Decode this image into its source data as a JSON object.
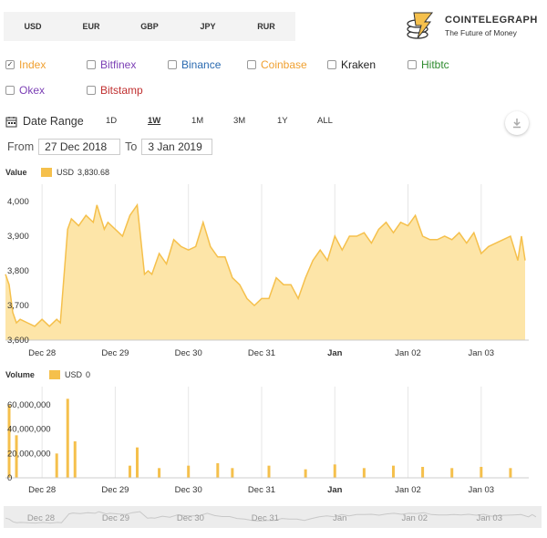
{
  "currencies": [
    {
      "label": "USD",
      "active": true
    },
    {
      "label": "EUR",
      "active": false
    },
    {
      "label": "GBP",
      "active": false
    },
    {
      "label": "JPY",
      "active": false
    },
    {
      "label": "RUR",
      "active": false
    }
  ],
  "brand": {
    "name": "COINTELEGRAPH",
    "tagline": "The Future of Money"
  },
  "exchanges": [
    {
      "label": "Index",
      "checked": true,
      "color": "#f0a030"
    },
    {
      "label": "Bitfinex",
      "checked": false,
      "color": "#7b3fb5"
    },
    {
      "label": "Binance",
      "checked": false,
      "color": "#2a6ab0"
    },
    {
      "label": "Coinbase",
      "checked": false,
      "color": "#f0a030"
    },
    {
      "label": "Kraken",
      "checked": false,
      "color": "#222222"
    },
    {
      "label": "Hitbtc",
      "checked": false,
      "color": "#2e8b2e"
    },
    {
      "label": "Okex",
      "checked": false,
      "color": "#7b3fb5"
    },
    {
      "label": "Bitstamp",
      "checked": false,
      "color": "#c03030"
    }
  ],
  "range": {
    "label": "Date Range",
    "options": [
      {
        "label": "1D",
        "active": false
      },
      {
        "label": "1W",
        "active": true
      },
      {
        "label": "1M",
        "active": false
      },
      {
        "label": "3M",
        "active": false
      },
      {
        "label": "1Y",
        "active": false
      },
      {
        "label": "ALL",
        "active": false
      }
    ],
    "from_label": "From",
    "from_value": "27 Dec 2018",
    "to_label": "To",
    "to_value": "3 Jan 2019"
  },
  "colors": {
    "fill": "#fde5a8",
    "line": "#f5c04c",
    "bar": "#f5c04c"
  },
  "chart_data": [
    {
      "type": "area",
      "title": "Value",
      "legend": {
        "name": "USD",
        "value": "3,830.68",
        "placement": "top-left"
      },
      "x_ticks": [
        "Dec 28",
        "Dec 29",
        "Dec 30",
        "Dec 31",
        "Jan",
        "Jan 02",
        "Jan 03"
      ],
      "x_range": [
        0,
        7.15
      ],
      "y_ticks": [
        "3,600",
        "3,700",
        "3,800",
        "3,900",
        "4,000"
      ],
      "ylim": [
        3600,
        4050
      ],
      "grid": "vertical",
      "x": [
        0,
        0.05,
        0.1,
        0.15,
        0.2,
        0.3,
        0.4,
        0.5,
        0.6,
        0.7,
        0.75,
        0.85,
        0.9,
        1.0,
        1.1,
        1.2,
        1.25,
        1.35,
        1.4,
        1.5,
        1.6,
        1.7,
        1.8,
        1.9,
        1.95,
        2.0,
        2.1,
        2.2,
        2.3,
        2.4,
        2.5,
        2.6,
        2.7,
        2.8,
        2.9,
        3.0,
        3.1,
        3.2,
        3.3,
        3.4,
        3.5,
        3.6,
        3.7,
        3.8,
        3.9,
        4.0,
        4.1,
        4.2,
        4.3,
        4.4,
        4.5,
        4.6,
        4.7,
        4.8,
        4.9,
        5.0,
        5.1,
        5.2,
        5.3,
        5.4,
        5.5,
        5.6,
        5.7,
        5.8,
        5.9,
        6.0,
        6.1,
        6.2,
        6.3,
        6.4,
        6.5,
        6.6,
        6.7,
        6.8,
        6.9,
        7.0,
        7.05,
        7.1
      ],
      "values": [
        3790,
        3760,
        3680,
        3650,
        3660,
        3650,
        3640,
        3660,
        3640,
        3660,
        3650,
        3920,
        3950,
        3930,
        3960,
        3940,
        3990,
        3920,
        3940,
        3920,
        3900,
        3960,
        3990,
        3790,
        3800,
        3790,
        3850,
        3820,
        3890,
        3870,
        3860,
        3870,
        3940,
        3870,
        3840,
        3840,
        3780,
        3760,
        3720,
        3700,
        3720,
        3720,
        3780,
        3760,
        3760,
        3720,
        3780,
        3830,
        3860,
        3830,
        3900,
        3860,
        3900,
        3900,
        3910,
        3880,
        3920,
        3940,
        3910,
        3940,
        3930,
        3960,
        3900,
        3890,
        3890,
        3900,
        3890,
        3910,
        3880,
        3910,
        3850,
        3870,
        3880,
        3890,
        3900,
        3830,
        3900,
        3830
      ]
    },
    {
      "type": "bar",
      "title": "Volume",
      "legend": {
        "name": "USD",
        "value": "0",
        "placement": "top-left"
      },
      "x_ticks": [
        "Dec 28",
        "Dec 29",
        "Dec 30",
        "Dec 31",
        "Jan",
        "Jan 02",
        "Jan 03"
      ],
      "x_range": [
        0,
        7.15
      ],
      "y_ticks": [
        "0",
        "20,000,000",
        "40,000,000",
        "60,000,000"
      ],
      "ylim": [
        0,
        75000000
      ],
      "grid": "vertical",
      "x": [
        0.05,
        0.15,
        0.7,
        0.85,
        0.95,
        1.7,
        1.8,
        2.1,
        2.5,
        2.9,
        3.1,
        3.6,
        4.1,
        4.5,
        4.9,
        5.3,
        5.7,
        6.1,
        6.5,
        6.9
      ],
      "values": [
        60000000,
        35000000,
        20000000,
        65000000,
        30000000,
        10000000,
        25000000,
        8000000,
        10000000,
        12000000,
        8000000,
        10000000,
        7000000,
        11000000,
        8000000,
        10000000,
        9000000,
        8000000,
        9000000,
        8000000
      ]
    }
  ],
  "navigator": {
    "x_ticks": [
      "Dec 28",
      "Dec 29",
      "Dec 30",
      "Dec 31",
      "Jan",
      "Jan 02",
      "Jan 03"
    ]
  }
}
